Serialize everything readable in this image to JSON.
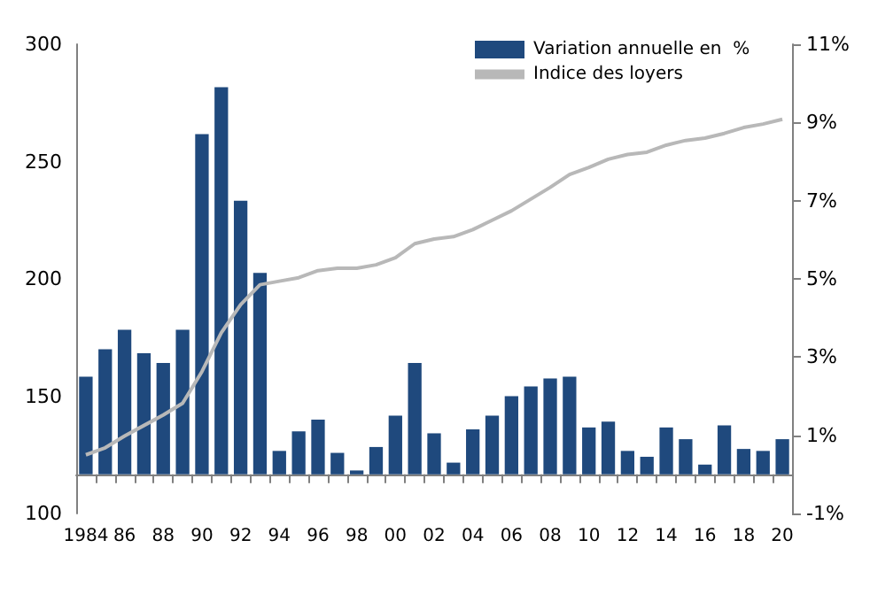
{
  "chart_data": {
    "type": "bar",
    "categories": [
      "1984",
      null,
      "86",
      null,
      "88",
      null,
      "90",
      null,
      "92",
      null,
      "94",
      null,
      "96",
      null,
      "98",
      null,
      "00",
      null,
      "02",
      null,
      "04",
      null,
      "06",
      null,
      "08",
      null,
      "10",
      null,
      "12",
      null,
      "14",
      null,
      "16",
      null,
      "18",
      null,
      "20"
    ],
    "series": [
      {
        "name": "Variation annuelle en  %",
        "axis": "y2",
        "color": "#1f497d",
        "values": [
          2.5,
          3.2,
          3.7,
          3.1,
          2.85,
          3.7,
          8.7,
          9.9,
          7.0,
          5.15,
          0.6,
          1.1,
          1.4,
          0.55,
          0.1,
          0.7,
          1.5,
          2.85,
          1.05,
          0.3,
          1.15,
          1.5,
          2.0,
          2.25,
          2.45,
          2.5,
          1.2,
          1.35,
          0.6,
          0.45,
          1.2,
          0.9,
          0.25,
          1.25,
          0.65,
          0.6,
          0.9
        ]
      },
      {
        "name": "Indice des loyers",
        "type": "line",
        "color": "#b8b8b8",
        "values": [
          125,
          128,
          133,
          137.5,
          142,
          147,
          160.5,
          177,
          189,
          197.5,
          199,
          200.5,
          203.5,
          204.5,
          204.5,
          206,
          209,
          215,
          217,
          218,
          221,
          225,
          229,
          234,
          239,
          244.5,
          247.5,
          251,
          253,
          254,
          257,
          259,
          260,
          262,
          264.5,
          266,
          268
        ]
      }
    ],
    "ylim": [
      100,
      300
    ],
    "yticks": [
      100,
      150,
      200,
      250,
      300
    ],
    "y2lim": [
      -1,
      11
    ],
    "y2ticks": [
      {
        "value": -1,
        "label": "-1%"
      },
      {
        "value": 1,
        "label": "1%"
      },
      {
        "value": 3,
        "label": "3%"
      },
      {
        "value": 5,
        "label": "5%"
      },
      {
        "value": 7,
        "label": "7%"
      },
      {
        "value": 9,
        "label": "9%"
      },
      {
        "value": 11,
        "label": "11%"
      }
    ],
    "grid": false,
    "legend": "top",
    "marker": "none",
    "line_style": "solid"
  }
}
